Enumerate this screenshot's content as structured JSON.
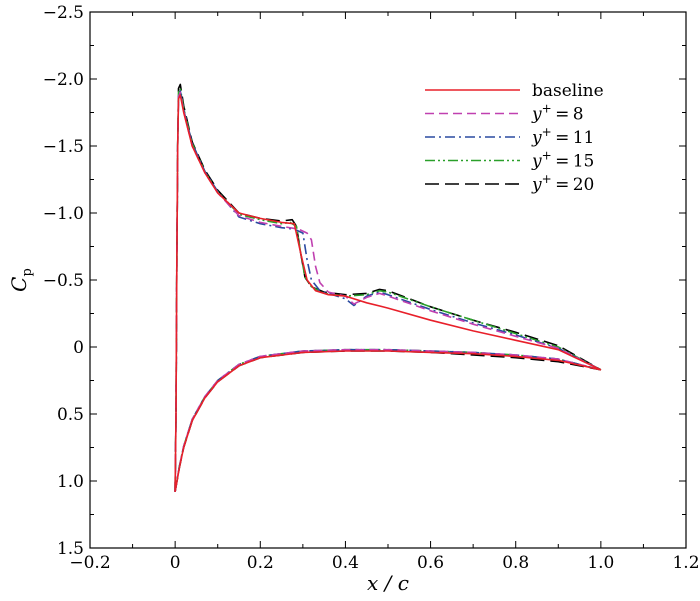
{
  "chart_data": {
    "type": "line",
    "title": "",
    "xlabel": "x / c",
    "ylabel": "C_p",
    "ylabel_main": "C",
    "ylabel_sub": "p",
    "xlim": [
      -0.2,
      1.2
    ],
    "ylim": [
      1.5,
      -2.5
    ],
    "y_inverted": true,
    "grid": false,
    "legend_position": "top-right",
    "x_ticks": [
      -0.2,
      0,
      0.2,
      0.4,
      0.6,
      0.8,
      1.0,
      1.2
    ],
    "x_tick_labels": [
      "−0.2",
      "0",
      "0.2",
      "0.4",
      "0.6",
      "0.8",
      "1.0",
      "1.2"
    ],
    "y_ticks": [
      -2.5,
      -2.0,
      -1.5,
      -1.0,
      -0.5,
      0,
      0.5,
      1.0,
      1.5
    ],
    "y_tick_labels": [
      "−2.5",
      "−2.0",
      "−1.5",
      "−1.0",
      "−0.5",
      "0",
      "0.5",
      "1.0",
      "1.5"
    ],
    "series": [
      {
        "name": "baseline",
        "label_parts": {
          "prefix": "baseline",
          "value": ""
        },
        "color": "#e8202a",
        "dash": "",
        "upper": [
          [
            0.0,
            1.08
          ],
          [
            0.002,
            0.5
          ],
          [
            0.004,
            -0.6
          ],
          [
            0.006,
            -1.5
          ],
          [
            0.008,
            -1.85
          ],
          [
            0.012,
            -1.88
          ],
          [
            0.02,
            -1.75
          ],
          [
            0.04,
            -1.5
          ],
          [
            0.07,
            -1.3
          ],
          [
            0.1,
            -1.15
          ],
          [
            0.15,
            -1.0
          ],
          [
            0.2,
            -0.96
          ],
          [
            0.25,
            -0.93
          ],
          [
            0.28,
            -0.92
          ],
          [
            0.295,
            -0.7
          ],
          [
            0.31,
            -0.5
          ],
          [
            0.33,
            -0.42
          ],
          [
            0.36,
            -0.39
          ],
          [
            0.4,
            -0.38
          ],
          [
            0.45,
            -0.33
          ],
          [
            0.5,
            -0.29
          ],
          [
            0.6,
            -0.2
          ],
          [
            0.7,
            -0.12
          ],
          [
            0.8,
            -0.05
          ],
          [
            0.9,
            0.02
          ],
          [
            1.0,
            0.17
          ]
        ],
        "lower": [
          [
            0.0,
            1.08
          ],
          [
            0.01,
            0.9
          ],
          [
            0.02,
            0.75
          ],
          [
            0.04,
            0.55
          ],
          [
            0.07,
            0.38
          ],
          [
            0.1,
            0.26
          ],
          [
            0.15,
            0.14
          ],
          [
            0.2,
            0.08
          ],
          [
            0.3,
            0.04
          ],
          [
            0.4,
            0.03
          ],
          [
            0.5,
            0.03
          ],
          [
            0.6,
            0.04
          ],
          [
            0.7,
            0.05
          ],
          [
            0.8,
            0.07
          ],
          [
            0.9,
            0.1
          ],
          [
            1.0,
            0.17
          ]
        ]
      },
      {
        "name": "y⁺ = 8",
        "label_parts": {
          "prefix": "y",
          "value": "8"
        },
        "color": "#c040b0",
        "dash": "9,5",
        "upper": [
          [
            0.0,
            1.08
          ],
          [
            0.002,
            0.5
          ],
          [
            0.004,
            -0.6
          ],
          [
            0.006,
            -1.5
          ],
          [
            0.008,
            -1.87
          ],
          [
            0.012,
            -1.9
          ],
          [
            0.02,
            -1.76
          ],
          [
            0.04,
            -1.5
          ],
          [
            0.07,
            -1.3
          ],
          [
            0.1,
            -1.15
          ],
          [
            0.15,
            -0.98
          ],
          [
            0.2,
            -0.93
          ],
          [
            0.25,
            -0.9
          ],
          [
            0.29,
            -0.88
          ],
          [
            0.31,
            -0.85
          ],
          [
            0.32,
            -0.8
          ],
          [
            0.33,
            -0.6
          ],
          [
            0.34,
            -0.48
          ],
          [
            0.36,
            -0.41
          ],
          [
            0.4,
            -0.38
          ],
          [
            0.42,
            -0.32
          ],
          [
            0.45,
            -0.37
          ],
          [
            0.48,
            -0.4
          ],
          [
            0.5,
            -0.38
          ],
          [
            0.6,
            -0.27
          ],
          [
            0.7,
            -0.17
          ],
          [
            0.8,
            -0.08
          ],
          [
            0.9,
            0.01
          ],
          [
            1.0,
            0.17
          ]
        ],
        "lower": [
          [
            0.0,
            1.08
          ],
          [
            0.01,
            0.89
          ],
          [
            0.02,
            0.74
          ],
          [
            0.04,
            0.54
          ],
          [
            0.07,
            0.37
          ],
          [
            0.1,
            0.25
          ],
          [
            0.15,
            0.13
          ],
          [
            0.2,
            0.07
          ],
          [
            0.3,
            0.03
          ],
          [
            0.4,
            0.02
          ],
          [
            0.5,
            0.02
          ],
          [
            0.6,
            0.03
          ],
          [
            0.7,
            0.04
          ],
          [
            0.8,
            0.06
          ],
          [
            0.9,
            0.09
          ],
          [
            1.0,
            0.17
          ]
        ]
      },
      {
        "name": "y⁺ = 11",
        "label_parts": {
          "prefix": "y",
          "value": "11"
        },
        "color": "#2a4aa0",
        "dash": "10,4,2,4",
        "upper": [
          [
            0.0,
            1.08
          ],
          [
            0.002,
            0.5
          ],
          [
            0.004,
            -0.6
          ],
          [
            0.006,
            -1.5
          ],
          [
            0.008,
            -1.88
          ],
          [
            0.012,
            -1.91
          ],
          [
            0.02,
            -1.77
          ],
          [
            0.04,
            -1.52
          ],
          [
            0.07,
            -1.31
          ],
          [
            0.1,
            -1.16
          ],
          [
            0.15,
            -0.97
          ],
          [
            0.2,
            -0.92
          ],
          [
            0.25,
            -0.89
          ],
          [
            0.28,
            -0.88
          ],
          [
            0.3,
            -0.85
          ],
          [
            0.31,
            -0.65
          ],
          [
            0.32,
            -0.5
          ],
          [
            0.34,
            -0.42
          ],
          [
            0.37,
            -0.39
          ],
          [
            0.4,
            -0.36
          ],
          [
            0.42,
            -0.31
          ],
          [
            0.45,
            -0.38
          ],
          [
            0.48,
            -0.41
          ],
          [
            0.5,
            -0.39
          ],
          [
            0.6,
            -0.28
          ],
          [
            0.7,
            -0.18
          ],
          [
            0.8,
            -0.09
          ],
          [
            0.9,
            0.01
          ],
          [
            1.0,
            0.17
          ]
        ],
        "lower": [
          [
            0.0,
            1.08
          ],
          [
            0.01,
            0.89
          ],
          [
            0.02,
            0.74
          ],
          [
            0.04,
            0.54
          ],
          [
            0.07,
            0.37
          ],
          [
            0.1,
            0.25
          ],
          [
            0.15,
            0.13
          ],
          [
            0.2,
            0.07
          ],
          [
            0.3,
            0.03
          ],
          [
            0.4,
            0.02
          ],
          [
            0.5,
            0.02
          ],
          [
            0.6,
            0.03
          ],
          [
            0.7,
            0.04
          ],
          [
            0.8,
            0.06
          ],
          [
            0.9,
            0.09
          ],
          [
            1.0,
            0.17
          ]
        ]
      },
      {
        "name": "y⁺ = 15",
        "label_parts": {
          "prefix": "y",
          "value": "15"
        },
        "color": "#2aa02a",
        "dash": "10,3,2,3,2,3",
        "upper": [
          [
            0.0,
            1.08
          ],
          [
            0.002,
            0.5
          ],
          [
            0.004,
            -0.6
          ],
          [
            0.006,
            -1.5
          ],
          [
            0.008,
            -1.9
          ],
          [
            0.012,
            -1.93
          ],
          [
            0.02,
            -1.78
          ],
          [
            0.04,
            -1.52
          ],
          [
            0.07,
            -1.31
          ],
          [
            0.1,
            -1.16
          ],
          [
            0.15,
            -0.99
          ],
          [
            0.2,
            -0.95
          ],
          [
            0.25,
            -0.92
          ],
          [
            0.27,
            -0.93
          ],
          [
            0.285,
            -0.9
          ],
          [
            0.295,
            -0.7
          ],
          [
            0.305,
            -0.52
          ],
          [
            0.32,
            -0.45
          ],
          [
            0.35,
            -0.4
          ],
          [
            0.4,
            -0.38
          ],
          [
            0.45,
            -0.39
          ],
          [
            0.48,
            -0.42
          ],
          [
            0.5,
            -0.41
          ],
          [
            0.6,
            -0.3
          ],
          [
            0.7,
            -0.2
          ],
          [
            0.8,
            -0.1
          ],
          [
            0.9,
            0.0
          ],
          [
            1.0,
            0.17
          ]
        ],
        "lower": [
          [
            0.0,
            1.08
          ],
          [
            0.01,
            0.89
          ],
          [
            0.02,
            0.74
          ],
          [
            0.04,
            0.54
          ],
          [
            0.07,
            0.37
          ],
          [
            0.1,
            0.25
          ],
          [
            0.15,
            0.13
          ],
          [
            0.2,
            0.07
          ],
          [
            0.3,
            0.03
          ],
          [
            0.4,
            0.02
          ],
          [
            0.5,
            0.02
          ],
          [
            0.6,
            0.03
          ],
          [
            0.7,
            0.04
          ],
          [
            0.8,
            0.06
          ],
          [
            0.9,
            0.09
          ],
          [
            1.0,
            0.17
          ]
        ]
      },
      {
        "name": "y⁺ = 20",
        "label_parts": {
          "prefix": "y",
          "value": "20"
        },
        "color": "#000000",
        "dash": "14,6",
        "upper": [
          [
            0.0,
            1.08
          ],
          [
            0.002,
            0.5
          ],
          [
            0.004,
            -0.6
          ],
          [
            0.006,
            -1.5
          ],
          [
            0.008,
            -1.93
          ],
          [
            0.012,
            -1.96
          ],
          [
            0.02,
            -1.8
          ],
          [
            0.04,
            -1.53
          ],
          [
            0.07,
            -1.32
          ],
          [
            0.1,
            -1.17
          ],
          [
            0.15,
            -1.0
          ],
          [
            0.2,
            -0.96
          ],
          [
            0.25,
            -0.94
          ],
          [
            0.275,
            -0.95
          ],
          [
            0.285,
            -0.9
          ],
          [
            0.295,
            -0.7
          ],
          [
            0.305,
            -0.52
          ],
          [
            0.32,
            -0.45
          ],
          [
            0.35,
            -0.41
          ],
          [
            0.4,
            -0.39
          ],
          [
            0.45,
            -0.4
          ],
          [
            0.48,
            -0.43
          ],
          [
            0.5,
            -0.42
          ],
          [
            0.6,
            -0.3
          ],
          [
            0.7,
            -0.2
          ],
          [
            0.8,
            -0.11
          ],
          [
            0.9,
            -0.01
          ],
          [
            1.0,
            0.17
          ]
        ],
        "lower": [
          [
            0.0,
            1.08
          ],
          [
            0.01,
            0.9
          ],
          [
            0.02,
            0.75
          ],
          [
            0.04,
            0.55
          ],
          [
            0.07,
            0.38
          ],
          [
            0.1,
            0.26
          ],
          [
            0.15,
            0.14
          ],
          [
            0.2,
            0.08
          ],
          [
            0.3,
            0.04
          ],
          [
            0.4,
            0.03
          ],
          [
            0.5,
            0.03
          ],
          [
            0.6,
            0.04
          ],
          [
            0.7,
            0.06
          ],
          [
            0.8,
            0.08
          ],
          [
            0.9,
            0.11
          ],
          [
            1.0,
            0.17
          ]
        ]
      }
    ]
  }
}
